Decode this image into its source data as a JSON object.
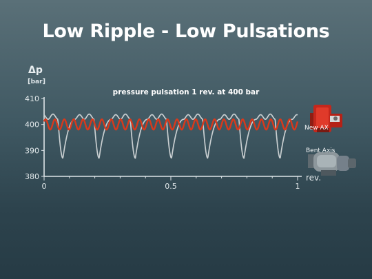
{
  "slide": {
    "title": "Low Ripple - Low Pulsations"
  },
  "chart_data": {
    "type": "line",
    "title": "pressure pulsation 1 rev. at 400 bar",
    "ylabel_symbol": "Δp",
    "ylabel_unit": "bar",
    "xlabel": "rev.",
    "xlim": [
      0,
      1
    ],
    "ylim": [
      380,
      410
    ],
    "x_ticks": [
      "0",
      "0.5",
      "1"
    ],
    "y_ticks": [
      "380",
      "390",
      "400",
      "410"
    ],
    "grid": false,
    "legend_placement": "right",
    "series": [
      {
        "name": "New AX",
        "color": "#d8391c",
        "waveform": "sinusoid",
        "mean": 400,
        "amplitude": 2,
        "cycles_per_rev": 27
      },
      {
        "name": "Bent Axis",
        "color": "#c9cfd1",
        "waveform": "sawtooth-dip",
        "baseline": 402,
        "peak": 405,
        "minimum": 387,
        "cycles_per_rev": 7
      }
    ]
  },
  "legend_images": [
    {
      "name": "New AX",
      "icon": "red-axial-pump-icon"
    },
    {
      "name": "Bent Axis",
      "icon": "bent-axis-pump-icon"
    }
  ]
}
